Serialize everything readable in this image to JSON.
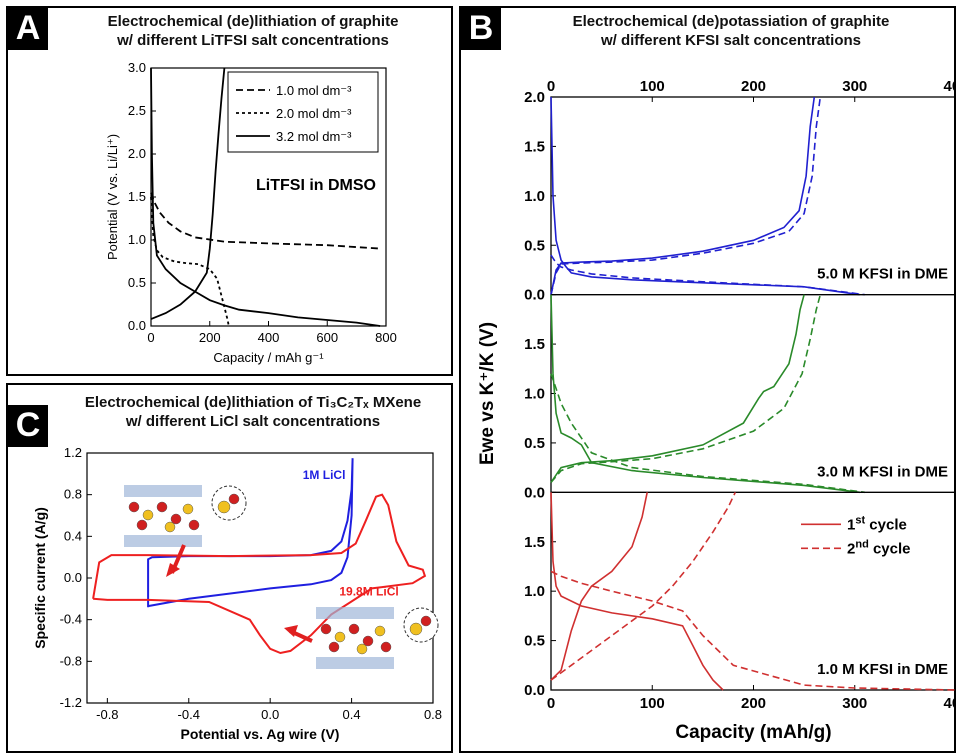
{
  "panels": {
    "A": {
      "label": "A",
      "title_line1": "Electrochemical (de)lithiation of graphite",
      "title_line2": "w/ different LiTFSI salt concentrations"
    },
    "B": {
      "label": "B",
      "title_line1": "Electrochemical (de)potassiation of graphite",
      "title_line2": "w/ different KFSI salt concentrations"
    },
    "C": {
      "label": "C",
      "title_line1": "Electrochemical (de)lithiation of Ti₃C₂Tₓ MXene",
      "title_line2": "w/ different LiCl salt concentrations"
    }
  },
  "chart_data": [
    {
      "id": "A",
      "type": "line",
      "xlabel": "Capacity / mAh g⁻¹",
      "ylabel": "Potential (V vs. Li/Li⁺)",
      "xlim": [
        0,
        800
      ],
      "ylim": [
        0,
        3.0
      ],
      "xticks": [
        0,
        200,
        400,
        600,
        800
      ],
      "yticks": [
        0.0,
        0.5,
        1.0,
        1.5,
        2.0,
        2.5,
        3.0
      ],
      "annotation": "LiTFSI in DMSO",
      "legend_position": "top-right",
      "series": [
        {
          "name": "1.0 mol dm⁻³",
          "dash": "dashed",
          "color": "#000000",
          "x": [
            0,
            10,
            30,
            60,
            100,
            150,
            250,
            400,
            600,
            780
          ],
          "y": [
            1.55,
            1.45,
            1.32,
            1.2,
            1.1,
            1.03,
            0.98,
            0.96,
            0.94,
            0.9
          ]
        },
        {
          "name": "2.0 mol dm⁻³",
          "dash": "dotted",
          "color": "#000000",
          "x": [
            0,
            8,
            20,
            40,
            80,
            120,
            160,
            200,
            225,
            240,
            250,
            260,
            265
          ],
          "y": [
            1.5,
            1.05,
            0.88,
            0.8,
            0.75,
            0.73,
            0.72,
            0.66,
            0.55,
            0.35,
            0.22,
            0.08,
            0.0
          ]
        },
        {
          "name": "3.2 mol dm⁻³",
          "dash": "solid",
          "color": "#000000",
          "x": [
            0,
            3,
            8,
            20,
            50,
            100,
            150,
            200,
            250,
            300,
            400,
            500,
            600,
            700,
            780
          ],
          "y": [
            3.0,
            2.0,
            1.2,
            0.82,
            0.66,
            0.5,
            0.4,
            0.3,
            0.24,
            0.19,
            0.15,
            0.1,
            0.07,
            0.04,
            0.0
          ]
        },
        {
          "name": "",
          "dash": "solid",
          "color": "#000000",
          "x": [
            0,
            50,
            100,
            150,
            190,
            200,
            210,
            220,
            230,
            240,
            250
          ],
          "y": [
            0.08,
            0.15,
            0.25,
            0.4,
            0.62,
            0.9,
            1.3,
            1.8,
            2.25,
            2.65,
            3.0
          ]
        }
      ]
    },
    {
      "id": "B",
      "type": "line",
      "xlabel": "Capacity (mAh/g)",
      "ylabel": "Ewe vs K⁺/K (V)",
      "xlim": [
        0,
        400
      ],
      "xticks": [
        0,
        100,
        200,
        300,
        400
      ],
      "legend_position": "bottom-right",
      "legend": [
        {
          "label_main": "1",
          "label_sup": "st",
          "label_tail": " cycle",
          "dash": "solid"
        },
        {
          "label_main": "2",
          "label_sup": "nd",
          "label_tail": " cycle",
          "dash": "dashed"
        }
      ],
      "subplots": [
        {
          "label": "5.0 M KFSI in DME",
          "color": "#2020d0",
          "ylim": [
            0,
            2.0
          ],
          "yticks": [
            0.0,
            0.5,
            1.0,
            1.5,
            2.0
          ],
          "series": [
            {
              "name": "1st cycle",
              "dash": "solid",
              "x": [
                0,
                2,
                5,
                10,
                15,
                20,
                40,
                80,
                150,
                250,
                305
              ],
              "y": [
                2.0,
                1.0,
                0.55,
                0.35,
                0.28,
                0.22,
                0.18,
                0.15,
                0.12,
                0.08,
                0.0
              ]
            },
            {
              "name": "1st cycle",
              "dash": "solid",
              "x": [
                0,
                5,
                10,
                30,
                60,
                100,
                150,
                200,
                230,
                245,
                252,
                256,
                260
              ],
              "y": [
                0.0,
                0.25,
                0.32,
                0.33,
                0.34,
                0.37,
                0.44,
                0.55,
                0.68,
                0.85,
                1.2,
                1.7,
                2.0
              ]
            },
            {
              "name": "2nd cycle",
              "dash": "dashed",
              "x": [
                0,
                5,
                10,
                20,
                40,
                80,
                150,
                250,
                310
              ],
              "y": [
                0.4,
                0.32,
                0.28,
                0.25,
                0.21,
                0.17,
                0.13,
                0.08,
                0.0
              ]
            },
            {
              "name": "2nd cycle",
              "dash": "dashed",
              "x": [
                0,
                5,
                10,
                30,
                60,
                100,
                150,
                200,
                235,
                250,
                258,
                262,
                266
              ],
              "y": [
                0.0,
                0.22,
                0.31,
                0.32,
                0.33,
                0.35,
                0.42,
                0.52,
                0.64,
                0.82,
                1.2,
                1.7,
                2.0
              ]
            }
          ]
        },
        {
          "label": "3.0 M KFSI in DME",
          "color": "#2a8a2a",
          "ylim": [
            0,
            2.0
          ],
          "yticks": [
            0.0,
            0.5,
            1.0,
            1.5
          ],
          "series": [
            {
              "name": "1st cycle",
              "dash": "solid",
              "x": [
                0,
                2,
                5,
                10,
                20,
                30,
                40,
                80,
                150,
                250,
                305
              ],
              "y": [
                2.0,
                1.2,
                0.8,
                0.6,
                0.55,
                0.48,
                0.3,
                0.22,
                0.15,
                0.07,
                0.0
              ]
            },
            {
              "name": "1st cycle",
              "dash": "solid",
              "x": [
                0,
                10,
                30,
                60,
                100,
                150,
                190,
                205,
                210,
                220,
                235,
                242,
                246,
                250
              ],
              "y": [
                0.1,
                0.25,
                0.3,
                0.32,
                0.37,
                0.48,
                0.7,
                0.95,
                1.02,
                1.07,
                1.3,
                1.6,
                1.85,
                2.0
              ]
            },
            {
              "name": "2nd cycle",
              "dash": "dashed",
              "x": [
                0,
                5,
                10,
                20,
                40,
                80,
                150,
                250,
                310
              ],
              "y": [
                1.2,
                1.05,
                0.9,
                0.7,
                0.4,
                0.25,
                0.16,
                0.08,
                0.0
              ]
            },
            {
              "name": "2nd cycle",
              "dash": "dashed",
              "x": [
                0,
                10,
                30,
                60,
                100,
                150,
                200,
                230,
                248,
                256,
                262,
                266
              ],
              "y": [
                0.1,
                0.22,
                0.29,
                0.31,
                0.34,
                0.44,
                0.62,
                0.85,
                1.2,
                1.55,
                1.85,
                2.0
              ]
            }
          ]
        },
        {
          "label": "1.0 M KFSI in DME",
          "color": "#d03030",
          "ylim": [
            0,
            2.0
          ],
          "yticks": [
            0.0,
            0.5,
            1.0,
            1.5
          ],
          "series": [
            {
              "name": "1st cycle",
              "dash": "solid",
              "x": [
                0,
                2,
                5,
                10,
                30,
                60,
                100,
                130,
                140,
                150,
                160,
                170
              ],
              "y": [
                2.0,
                1.3,
                1.05,
                0.95,
                0.85,
                0.78,
                0.72,
                0.65,
                0.45,
                0.25,
                0.1,
                0.0
              ]
            },
            {
              "name": "1st cycle",
              "dash": "solid",
              "x": [
                0,
                10,
                20,
                30,
                40,
                60,
                80,
                90,
                95
              ],
              "y": [
                0.1,
                0.2,
                0.6,
                0.9,
                1.05,
                1.2,
                1.45,
                1.75,
                2.0
              ]
            },
            {
              "name": "2nd cycle",
              "dash": "dashed",
              "x": [
                0,
                10,
                30,
                60,
                100,
                130,
                150,
                180,
                250,
                300,
                400
              ],
              "y": [
                1.2,
                1.15,
                1.08,
                1.0,
                0.9,
                0.8,
                0.55,
                0.25,
                0.05,
                0.02,
                0.0
              ]
            },
            {
              "name": "2nd cycle",
              "dash": "dashed",
              "x": [
                0,
                20,
                40,
                60,
                80,
                100,
                120,
                140,
                160,
                175,
                182
              ],
              "y": [
                0.1,
                0.25,
                0.4,
                0.55,
                0.7,
                0.85,
                1.05,
                1.3,
                1.6,
                1.85,
                2.0
              ]
            }
          ]
        }
      ]
    },
    {
      "id": "C",
      "type": "line",
      "xlabel": "Potential vs. Ag wire (V)",
      "ylabel": "Specific current (A/g)",
      "xlim": [
        -0.9,
        0.8
      ],
      "ylim": [
        -1.2,
        1.2
      ],
      "xticks": [
        -0.8,
        -0.4,
        0.0,
        0.4,
        0.8
      ],
      "yticks": [
        -1.2,
        -0.8,
        -0.4,
        0.0,
        0.4,
        0.8,
        1.2
      ],
      "series": [
        {
          "name": "1M LiCl",
          "dash": "solid",
          "color": "#1f1fe0",
          "x": [
            -0.6,
            -0.6,
            -0.58,
            -0.4,
            0.0,
            0.2,
            0.3,
            0.35,
            0.38,
            0.4,
            0.405,
            0.4,
            0.38,
            0.35,
            0.3,
            0.2,
            0.0,
            -0.4,
            -0.6,
            -0.6
          ],
          "y": [
            -0.28,
            0.18,
            0.2,
            0.21,
            0.21,
            0.22,
            0.26,
            0.35,
            0.55,
            0.85,
            1.15,
            0.6,
            0.2,
            0.05,
            -0.02,
            -0.06,
            -0.1,
            -0.2,
            -0.27,
            -0.28
          ]
        },
        {
          "name": "19.8M LiCl",
          "dash": "solid",
          "color": "#ee2020",
          "x": [
            -0.87,
            -0.84,
            -0.78,
            -0.6,
            -0.2,
            0.2,
            0.35,
            0.42,
            0.47,
            0.52,
            0.55,
            0.58,
            0.62,
            0.68,
            0.75,
            0.76,
            0.7,
            0.5,
            0.3,
            0.2,
            0.1,
            0.05,
            0.0,
            -0.05,
            -0.1,
            -0.3,
            -0.6,
            -0.8,
            -0.87
          ],
          "y": [
            -0.2,
            0.15,
            0.22,
            0.22,
            0.21,
            0.22,
            0.24,
            0.33,
            0.55,
            0.78,
            0.8,
            0.7,
            0.35,
            0.12,
            0.08,
            0.02,
            -0.05,
            -0.1,
            -0.35,
            -0.55,
            -0.7,
            -0.72,
            -0.68,
            -0.55,
            -0.4,
            -0.23,
            -0.21,
            -0.21,
            -0.2
          ]
        }
      ],
      "annotations": [
        {
          "text": "1M LiCl",
          "color": "#1f1fe0"
        },
        {
          "text": "19.8M LiCl",
          "color": "#ee2020"
        }
      ]
    }
  ]
}
